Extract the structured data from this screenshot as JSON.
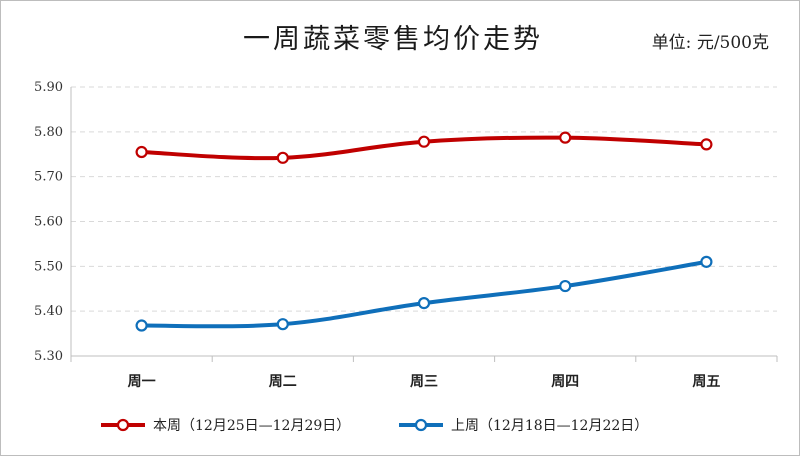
{
  "chart_data": {
    "type": "line",
    "title": "一周蔬菜零售均价走势",
    "unit": "单位: 元/500克",
    "categories": [
      "周一",
      "周二",
      "周三",
      "周四",
      "周五"
    ],
    "ylim": [
      5.3,
      5.9
    ],
    "yticks": [
      "5.90",
      "5.80",
      "5.70",
      "5.60",
      "5.50",
      "5.40",
      "5.30"
    ],
    "grid": true,
    "legend_position": "bottom",
    "series": [
      {
        "name": "本周（12月25日—12月29日）",
        "color": "#c00000",
        "values": [
          5.755,
          5.742,
          5.778,
          5.787,
          5.772
        ]
      },
      {
        "name": "上周（12月18日—12月22日）",
        "color": "#0f6fba",
        "values": [
          5.368,
          5.371,
          5.418,
          5.456,
          5.51
        ]
      }
    ]
  }
}
